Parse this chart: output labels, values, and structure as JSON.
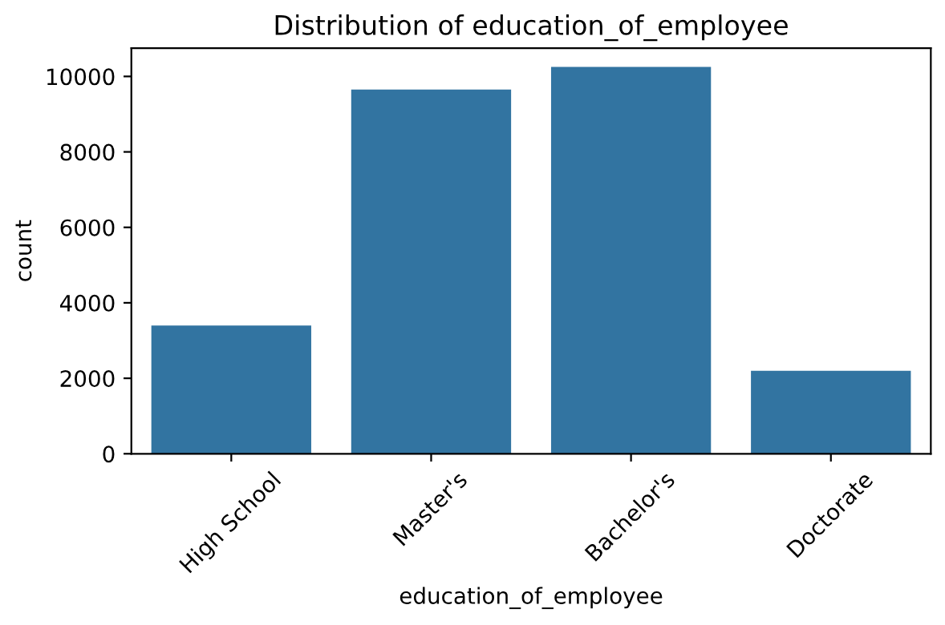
{
  "chart_data": {
    "type": "bar",
    "title": "Distribution of education_of_employee",
    "xlabel": "education_of_employee",
    "ylabel": "count",
    "categories": [
      "High School",
      "Master's",
      "Bachelor's",
      "Doctorate"
    ],
    "values": [
      3400,
      9650,
      10250,
      2200
    ],
    "color": "#3274a1",
    "ylim": [
      0,
      10750
    ],
    "yticks": [
      0,
      2000,
      4000,
      6000,
      8000,
      10000
    ],
    "grid": false
  }
}
